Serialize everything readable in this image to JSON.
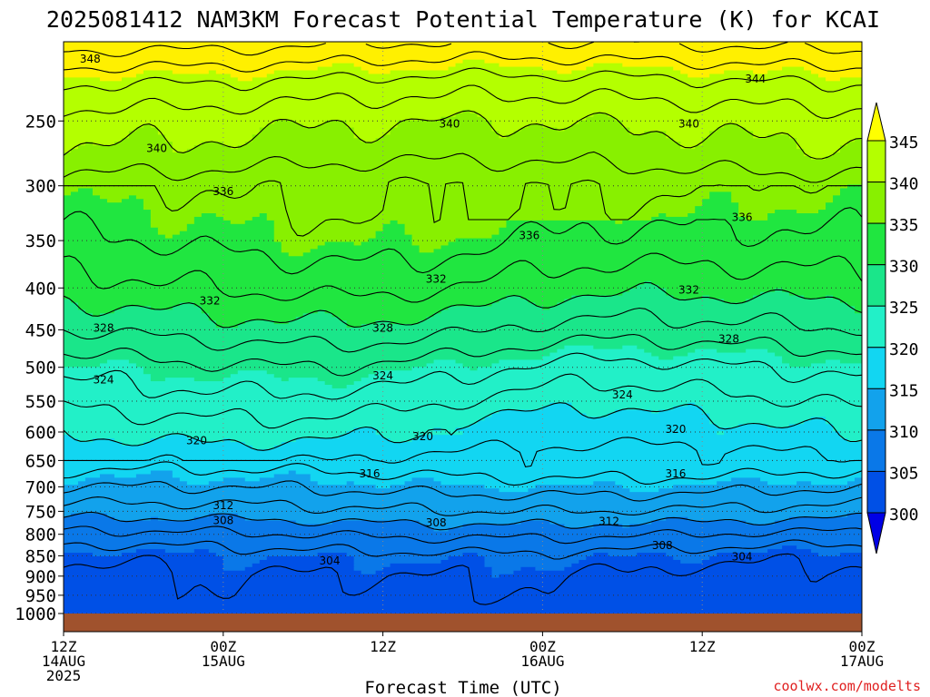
{
  "chart_data": {
    "type": "heatmap",
    "title": "2025081412 NAM3KM Forecast Potential Temperature (K) for KCAI",
    "xlabel": "Forecast Time (UTC)",
    "ylabel": "",
    "credit": "coolwx.com/modelts",
    "y_ticks": [
      "250",
      "300",
      "350",
      "400",
      "450",
      "500",
      "550",
      "600",
      "650",
      "700",
      "750",
      "800",
      "850",
      "900",
      "950",
      "1000"
    ],
    "x_ticks": [
      {
        "time": "12Z",
        "date": "14AUG",
        "year": "2025"
      },
      {
        "time": "00Z",
        "date": "15AUG",
        "year": ""
      },
      {
        "time": "12Z",
        "date": "",
        "year": ""
      },
      {
        "time": "00Z",
        "date": "16AUG",
        "year": ""
      },
      {
        "time": "12Z",
        "date": "",
        "year": ""
      },
      {
        "time": "00Z",
        "date": "17AUG",
        "year": ""
      }
    ],
    "x_range_hours": [
      0,
      60
    ],
    "y_range_hpa": [
      200,
      1000
    ],
    "y_scale": "log-pressure",
    "grid": true,
    "colorbar": {
      "labels": [
        "345",
        "340",
        "335",
        "330",
        "325",
        "320",
        "315",
        "310",
        "305",
        "300"
      ],
      "bands": [
        {
          "min": 295,
          "max": 300,
          "color": "#0000e6"
        },
        {
          "min": 300,
          "max": 305,
          "color": "#0050e6"
        },
        {
          "min": 305,
          "max": 310,
          "color": "#0a78e8"
        },
        {
          "min": 310,
          "max": 315,
          "color": "#12a2ec"
        },
        {
          "min": 315,
          "max": 320,
          "color": "#12d6f2"
        },
        {
          "min": 320,
          "max": 325,
          "color": "#22f0c8"
        },
        {
          "min": 325,
          "max": 330,
          "color": "#1ae68a"
        },
        {
          "min": 330,
          "max": 335,
          "color": "#20e640"
        },
        {
          "min": 335,
          "max": 340,
          "color": "#88f000"
        },
        {
          "min": 340,
          "max": 345,
          "color": "#b4ff00"
        },
        {
          "min": 345,
          "max": 350,
          "color": "#fff000"
        }
      ],
      "over_color": "#ffff00",
      "under_color": "#0000e6"
    },
    "ground_color": "#a0522d",
    "contour_levels": [
      304,
      306,
      308,
      310,
      312,
      314,
      316,
      318,
      320,
      322,
      324,
      326,
      328,
      330,
      332,
      334,
      336,
      338,
      340,
      342,
      344,
      346,
      348
    ],
    "theta_profile": [
      {
        "p": 200,
        "t": 348.5
      },
      {
        "p": 225,
        "t": 343.5
      },
      {
        "p": 250,
        "t": 340.5
      },
      {
        "p": 275,
        "t": 339.0
      },
      {
        "p": 300,
        "t": 336.5
      },
      {
        "p": 350,
        "t": 334.5
      },
      {
        "p": 400,
        "t": 331.8
      },
      {
        "p": 450,
        "t": 328.5
      },
      {
        "p": 500,
        "t": 325.0
      },
      {
        "p": 550,
        "t": 322.5
      },
      {
        "p": 600,
        "t": 320.0
      },
      {
        "p": 650,
        "t": 317.5
      },
      {
        "p": 700,
        "t": 314.5
      },
      {
        "p": 750,
        "t": 311.5
      },
      {
        "p": 800,
        "t": 308.0
      },
      {
        "p": 850,
        "t": 305.0
      },
      {
        "p": 900,
        "t": 303.5
      },
      {
        "p": 950,
        "t": 303.0
      },
      {
        "p": 1000,
        "t": 302.2
      }
    ],
    "contour_labels": [
      {
        "text": "348",
        "hour": 2,
        "p": 210
      },
      {
        "text": "344",
        "hour": 52,
        "p": 222
      },
      {
        "text": "340",
        "hour": 7,
        "p": 270
      },
      {
        "text": "340",
        "hour": 29,
        "p": 252
      },
      {
        "text": "340",
        "hour": 47,
        "p": 252
      },
      {
        "text": "336",
        "hour": 12,
        "p": 305
      },
      {
        "text": "336",
        "hour": 35,
        "p": 345
      },
      {
        "text": "336",
        "hour": 51,
        "p": 328
      },
      {
        "text": "332",
        "hour": 28,
        "p": 390
      },
      {
        "text": "332",
        "hour": 11,
        "p": 415
      },
      {
        "text": "332",
        "hour": 47,
        "p": 402
      },
      {
        "text": "328",
        "hour": 3,
        "p": 448
      },
      {
        "text": "328",
        "hour": 24,
        "p": 448
      },
      {
        "text": "328",
        "hour": 50,
        "p": 462
      },
      {
        "text": "324",
        "hour": 3,
        "p": 518
      },
      {
        "text": "324",
        "hour": 24,
        "p": 512
      },
      {
        "text": "324",
        "hour": 42,
        "p": 540
      },
      {
        "text": "320",
        "hour": 10,
        "p": 615
      },
      {
        "text": "320",
        "hour": 27,
        "p": 608
      },
      {
        "text": "320",
        "hour": 46,
        "p": 595
      },
      {
        "text": "316",
        "hour": 23,
        "p": 675
      },
      {
        "text": "316",
        "hour": 46,
        "p": 675
      },
      {
        "text": "312",
        "hour": 12,
        "p": 738
      },
      {
        "text": "312",
        "hour": 41,
        "p": 772
      },
      {
        "text": "308",
        "hour": 12,
        "p": 770
      },
      {
        "text": "308",
        "hour": 28,
        "p": 775
      },
      {
        "text": "308",
        "hour": 45,
        "p": 826
      },
      {
        "text": "304",
        "hour": 20,
        "p": 862
      },
      {
        "text": "304",
        "hour": 51,
        "p": 852
      }
    ]
  }
}
